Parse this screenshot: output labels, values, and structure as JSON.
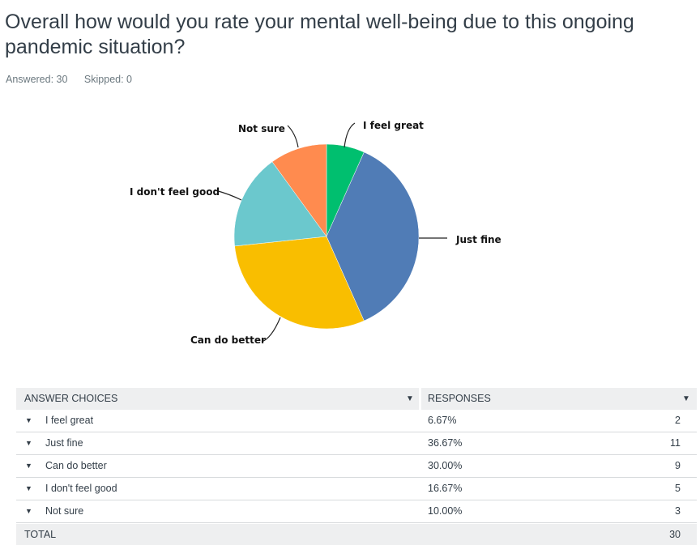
{
  "question": {
    "title": "Overall how would you rate your mental well-being due to this ongoing pandemic situation?",
    "answered": "Answered: 30",
    "skipped": "Skipped: 0"
  },
  "chart_data": {
    "type": "pie",
    "title": "",
    "categories": [
      "I feel great",
      "Just fine",
      "Can do better",
      "I don't feel good",
      "Not sure"
    ],
    "values": [
      6.67,
      36.67,
      30.0,
      16.67,
      10.0
    ],
    "colors": [
      "#00bf6f",
      "#507cb6",
      "#f9be00",
      "#6bc8cd",
      "#ff8b4f"
    ],
    "start": "12 o'clock",
    "direction": "clockwise"
  },
  "table": {
    "col_choices": "ANSWER CHOICES",
    "col_responses": "RESPONSES",
    "sort_icon": "caret-down-icon",
    "rows": [
      {
        "choice": "I feel great",
        "pct": "6.67%",
        "count": "2"
      },
      {
        "choice": "Just fine",
        "pct": "36.67%",
        "count": "11"
      },
      {
        "choice": "Can do better",
        "pct": "30.00%",
        "count": "9"
      },
      {
        "choice": "I don't feel good",
        "pct": "16.67%",
        "count": "5"
      },
      {
        "choice": "Not sure",
        "pct": "10.00%",
        "count": "3"
      }
    ],
    "total_label": "TOTAL",
    "total_value": "30"
  }
}
